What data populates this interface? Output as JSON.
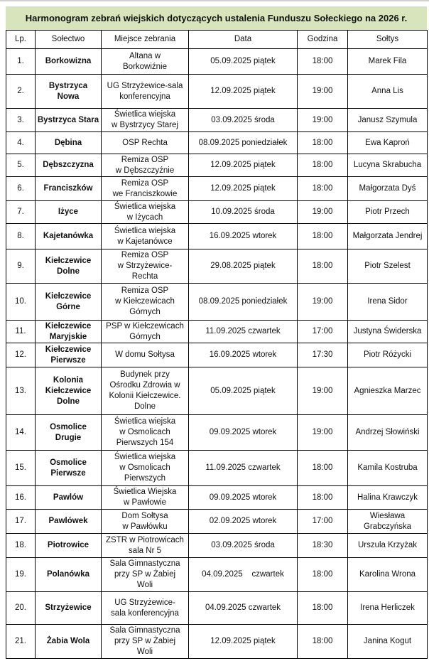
{
  "title": "Harmonogram zebrań wiejskich dotyczących ustalenia Funduszu Sołeckiego na 2026 r.",
  "colors": {
    "title_background": "#d8e4bc"
  },
  "columns": [
    "Lp.",
    "Sołectwo",
    "Miejsce zebrania",
    "Data",
    "Godzina",
    "Sołtys"
  ],
  "rows": [
    {
      "lp": "1.",
      "solectwo": "Borkowizna",
      "miejsce": "Altana w\nBorkowiźnie",
      "data": "05.09.2025 piątek",
      "godzina": "18:00",
      "soltys": "Marek Fila"
    },
    {
      "lp": "2.",
      "solectwo": "Bystrzyca Nowa",
      "miejsce": "UG Strzyżewice-sala\nkonferencyjna",
      "data": "12.09.2025 piątek",
      "godzina": "19:00",
      "soltys": "Anna Lis"
    },
    {
      "lp": "3.",
      "solectwo": "Bystrzyca Stara",
      "miejsce": "Świetlica wiejska\nw Bystrzycy Starej",
      "data": "03.09.2025 środa",
      "godzina": "19:00",
      "soltys": "Janusz Szymula"
    },
    {
      "lp": "4.",
      "solectwo": "Dębina",
      "miejsce": "OSP Rechta",
      "data": "08.09.2025 poniedziałek",
      "godzina": "18:00",
      "soltys": "Ewa Kaproń"
    },
    {
      "lp": "5.",
      "solectwo": "Dębszczyzna",
      "miejsce": "Remiza OSP\nw Dębszczyźnie",
      "data": "12.09.2025 piątek",
      "godzina": "18:00",
      "soltys": "Lucyna Skrabucha"
    },
    {
      "lp": "6.",
      "solectwo": "Franciszków",
      "miejsce": "Remiza OSP\nwe Franciszkowie",
      "data": "12.09.2025 piątek",
      "godzina": "18:00",
      "soltys": "Małgorzata Dyś"
    },
    {
      "lp": "7.",
      "solectwo": "Iżyce",
      "miejsce": "Świetlica wiejska\nw Iżycach",
      "data": "10.09.2025 środa",
      "godzina": "19:00",
      "soltys": "Piotr Przech"
    },
    {
      "lp": "8.",
      "solectwo": "Kajetanówka",
      "miejsce": "Świetlica wiejska\nw Kajetanówce",
      "data": "16.09.2025 wtorek",
      "godzina": "18:00",
      "soltys": "Małgorzata Jendrej"
    },
    {
      "lp": "9.",
      "solectwo": "Kiełczewice Dolne",
      "miejsce": "Remiza OSP\nw Strzyżewice-\nRechta",
      "data": "29.08.2025 piątek",
      "godzina": "18:00",
      "soltys": "Piotr Szelest"
    },
    {
      "lp": "10.",
      "solectwo": "Kiełczewice Górne",
      "miejsce": "Remiza OSP\nw Kiełczewicach\nGórnych",
      "data": "08.09.2025 poniedziałek",
      "godzina": "19:00",
      "soltys": "Irena Sidor"
    },
    {
      "lp": "11.",
      "solectwo": "Kiełczewice Maryjskie",
      "miejsce": "PSP w Kiełczewicach\nGórnych",
      "data": "11.09.2025 czwartek",
      "godzina": "17:00",
      "soltys": "Justyna Świderska"
    },
    {
      "lp": "12.",
      "solectwo": "Kiełczewice Pierwsze",
      "miejsce": "W domu Sołtysa",
      "data": "16.09.2025 wtorek",
      "godzina": "17:30",
      "soltys": "Piotr Różycki"
    },
    {
      "lp": "13.",
      "solectwo": "Kolonia Kiełczewice Dolne",
      "miejsce": "Budynek przy\nOśrodku Zdrowia w\nKolonii Kiełczewice.\nDolne",
      "data": "05.09.2025 piątek",
      "godzina": "19:00",
      "soltys": "Agnieszka Marzec"
    },
    {
      "lp": "14.",
      "solectwo": "Osmolice Drugie",
      "miejsce": "Świetlica wiejska\nw Osmolicach\nPierwszych 154",
      "data": "09.09.2025 wtorek",
      "godzina": "19:00",
      "soltys": "Andrzej Słowiński"
    },
    {
      "lp": "15.",
      "solectwo": "Osmolice Pierwsze",
      "miejsce": "Świetlica wiejska\nw Osmolicach\nPierwszych",
      "data": "11.09.2025 czwartek",
      "godzina": "18:00",
      "soltys": "Kamila Kostruba"
    },
    {
      "lp": "16.",
      "solectwo": "Pawlów",
      "miejsce": "Świetlica Wiejska\nw Pawłowie",
      "data": "09.09.2025 wtorek",
      "godzina": "18:00",
      "soltys": "Halina Krawczyk"
    },
    {
      "lp": "17.",
      "solectwo": "Pawlówek",
      "miejsce": "Dom Sołtysa\nw Pawłówku",
      "data": "02.09.2025 wtorek",
      "godzina": "17:00",
      "soltys": "Wiesława Grabczyńska"
    },
    {
      "lp": "18.",
      "solectwo": "Piotrowice",
      "miejsce": "ZSTR w Piotrowicach\nsala Nr 5",
      "data": "03.09.2025 środa",
      "godzina": "18:30",
      "soltys": "Urszula Krzyżak"
    },
    {
      "lp": "19.",
      "solectwo": "Polanówka",
      "miejsce": "Sala Gimnastyczna\nprzy SP w Żabiej\nWoli",
      "data": "04.09.2025    czwartek",
      "godzina": "18:00",
      "soltys": "Karolina Wrona"
    },
    {
      "lp": "20.",
      "solectwo": "Strzyżewice",
      "miejsce": "UG Strzyżewice-\nsala konferencyjna",
      "data": "04.09.2025 czwartek",
      "godzina": "18:00",
      "soltys": "Irena Herliczek"
    },
    {
      "lp": "21.",
      "solectwo": "Żabia Wola",
      "miejsce": "Sala Gimnastyczna\nprzy SP w Żabiej\nWoli",
      "data": "12.09.2025 piątek",
      "godzina": "18:00",
      "soltys": "Janina Kogut"
    }
  ]
}
